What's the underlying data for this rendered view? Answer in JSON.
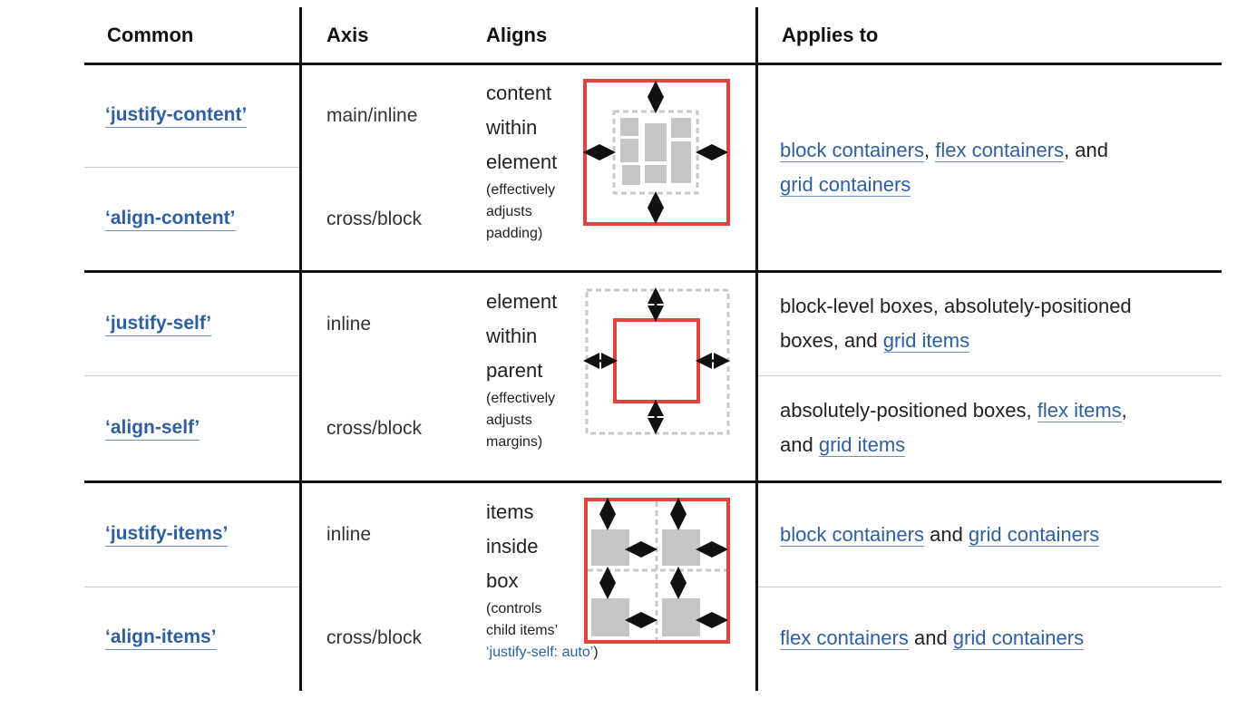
{
  "headers": {
    "common": "Common",
    "axis": "Axis",
    "aligns": "Aligns",
    "applies_to": "Applies to"
  },
  "groups": [
    {
      "aligns_lines": [
        "content",
        "within",
        "element"
      ],
      "aligns_note_lines": [
        "(effectively",
        "adjusts",
        "padding)"
      ],
      "diagram_icon": "content-alignment-diagram-icon",
      "rows": [
        {
          "property": "‘justify-content’",
          "axis": "main/inline"
        },
        {
          "property": "‘align-content’",
          "axis": "cross/block"
        }
      ],
      "applies_merged": {
        "line1": {
          "link1": "block containers",
          "sep1": ", ",
          "link2": "flex containers",
          "sep2": ", and"
        },
        "line2": {
          "link3": "grid containers"
        }
      }
    },
    {
      "aligns_lines": [
        "element",
        "within",
        "parent"
      ],
      "aligns_note_lines": [
        "(effectively",
        "adjusts",
        "margins)"
      ],
      "diagram_icon": "self-alignment-diagram-icon",
      "rows": [
        {
          "property": "‘justify-self’",
          "axis": "inline",
          "applies": {
            "line1": "block-level boxes, absolutely-positioned",
            "line2_text": "boxes, and ",
            "line2_link": "grid items"
          }
        },
        {
          "property": "‘align-self’",
          "axis": "cross/block",
          "applies": {
            "line1_text": "absolutely-positioned boxes, ",
            "line1_link": "flex items",
            "line1_end": ",",
            "line2_text": "and ",
            "line2_link": "grid items"
          }
        }
      ]
    },
    {
      "aligns_lines": [
        "items",
        "inside",
        "box"
      ],
      "aligns_note_lines": [
        "(controls",
        "child items’"
      ],
      "aligns_note_blue": "‘justify-self: auto’",
      "aligns_note_end": ")",
      "diagram_icon": "items-alignment-diagram-icon",
      "rows": [
        {
          "property": "‘justify-items’",
          "axis": "inline",
          "applies": {
            "link1": "block containers",
            "mid": " and ",
            "link2": "grid containers"
          }
        },
        {
          "property": "‘align-items’",
          "axis": "cross/block",
          "applies": {
            "link1": "flex containers",
            "mid": " and ",
            "link2": "grid containers"
          }
        }
      ]
    }
  ],
  "colors": {
    "red": "#e0443a",
    "gray_fill": "#c6c6c6",
    "dashed": "#c8c8c8",
    "link": "#2f5f9e"
  }
}
